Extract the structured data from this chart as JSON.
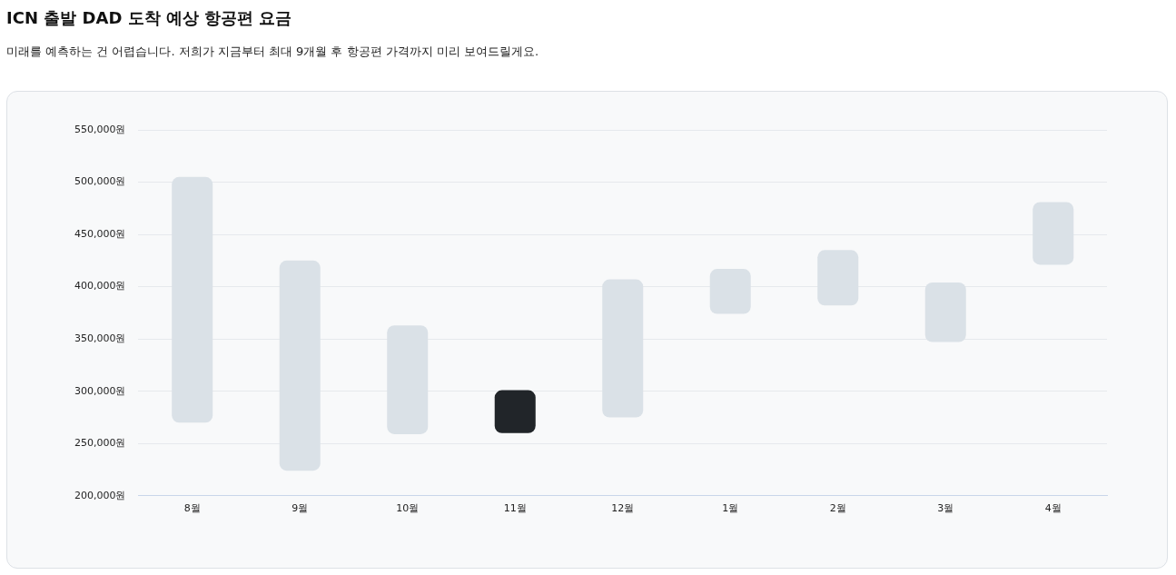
{
  "chart_data": {
    "type": "bar",
    "title": "ICN 출발 DAD 도착 예상 항공편 요금",
    "subtitle": "미래를 예측하는 건 어렵습니다. 저희가 지금부터 최대 9개월 후 항공편 가격까지 미리 보여드릴게요.",
    "categories": [
      "8월",
      "9월",
      "10월",
      "11월",
      "12월",
      "1월",
      "2월",
      "3월",
      "4월"
    ],
    "base": [
      270000,
      224000,
      259000,
      260000,
      275000,
      374000,
      382000,
      347000,
      421000
    ],
    "values": [
      235000,
      201000,
      104000,
      41000,
      132000,
      43000,
      53000,
      57000,
      60000
    ],
    "colors": [
      "#dae1e7",
      "#dae1e7",
      "#dae1e7",
      "#212529",
      "#dae1e7",
      "#dae1e7",
      "#dae1e7",
      "#dae1e7",
      "#dae1e7"
    ],
    "ylim": [
      200000,
      550000
    ],
    "yticks": [
      {
        "value": 200000,
        "label": "200,000원"
      },
      {
        "value": 250000,
        "label": "250,000원"
      },
      {
        "value": 300000,
        "label": "300,000원"
      },
      {
        "value": 350000,
        "label": "350,000원"
      },
      {
        "value": 400000,
        "label": "400,000원"
      },
      {
        "value": 450000,
        "label": "450,000원"
      },
      {
        "value": 500000,
        "label": "500,000원"
      },
      {
        "value": 550000,
        "label": "550,000원"
      }
    ],
    "grid": "y",
    "legend": false
  }
}
